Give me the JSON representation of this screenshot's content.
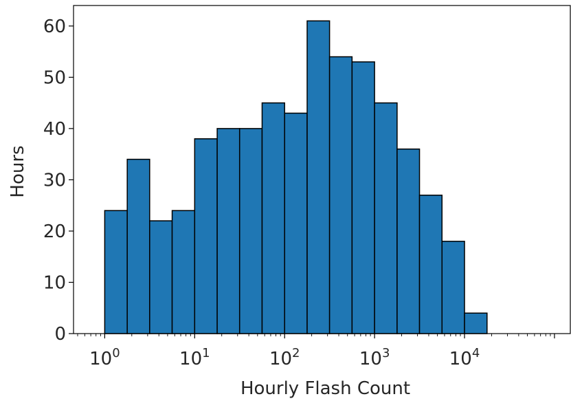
{
  "chart_data": {
    "type": "bar",
    "title": "",
    "xlabel": "Hourly Flash Count",
    "ylabel": "Hours",
    "x_scale": "log",
    "xlim": [
      0.45,
      150000
    ],
    "ylim": [
      0,
      64
    ],
    "bin_edges": [
      1.0,
      1.78,
      3.16,
      5.62,
      10.0,
      17.8,
      31.6,
      56.2,
      100.0,
      178,
      316,
      562,
      1000,
      1780,
      3160,
      5620,
      10000,
      17800
    ],
    "values": [
      24,
      34,
      22,
      24,
      38,
      40,
      40,
      45,
      43,
      61,
      54,
      53,
      45,
      36,
      27,
      18,
      4
    ],
    "x_ticks": [
      {
        "value": 1,
        "base": "10",
        "exp": "0"
      },
      {
        "value": 10,
        "base": "10",
        "exp": "1"
      },
      {
        "value": 100,
        "base": "10",
        "exp": "2"
      },
      {
        "value": 1000,
        "base": "10",
        "exp": "3"
      },
      {
        "value": 10000,
        "base": "10",
        "exp": "4"
      }
    ],
    "y_ticks": [
      "0",
      "10",
      "20",
      "30",
      "40",
      "50",
      "60"
    ],
    "bar_color": "#1f77b4",
    "edge_color": "#000000",
    "grid": false,
    "legend": "none"
  }
}
